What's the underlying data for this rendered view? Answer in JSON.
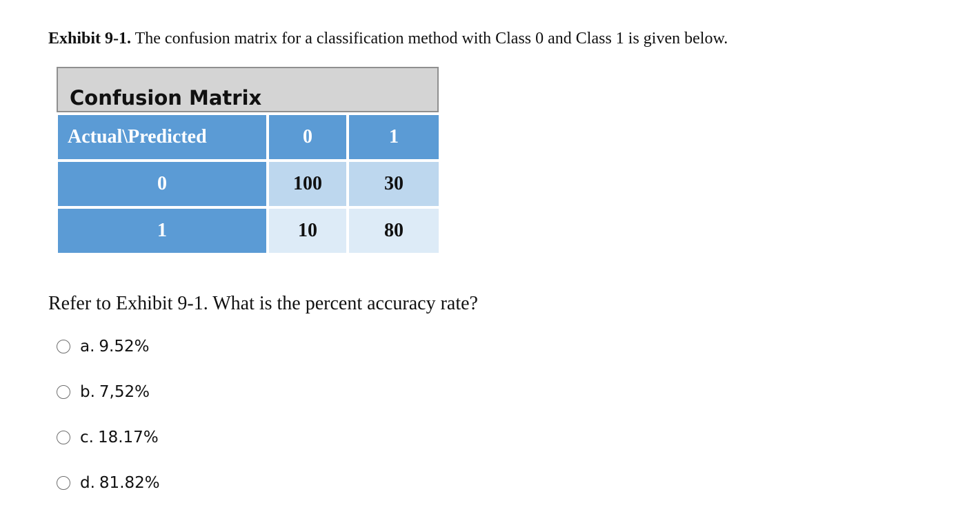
{
  "exhibit": {
    "label": "Exhibit 9-1.",
    "text": " The confusion matrix for a classification method with Class 0 and Class 1 is given below."
  },
  "matrix": {
    "title": "Confusion Matrix",
    "corner": "Actual\\Predicted",
    "col_headers": [
      "0",
      "1"
    ],
    "rows": [
      {
        "label": "0",
        "values": [
          "100",
          "30"
        ]
      },
      {
        "label": "1",
        "values": [
          "10",
          "80"
        ]
      }
    ]
  },
  "question": "Refer to Exhibit 9-1. What is the percent accuracy rate?",
  "options": [
    {
      "letter": "a.",
      "value": "9.52%"
    },
    {
      "letter": "b.",
      "value": "7,52%"
    },
    {
      "letter": "c.",
      "value": "18.17%"
    },
    {
      "letter": "d.",
      "value": "81.82%"
    }
  ],
  "colors": {
    "header_blue": "#5b9bd5",
    "cell_light_blue": "#bdd7ee",
    "cell_pale_blue": "#ddebf7",
    "title_gray": "#d4d4d4"
  }
}
